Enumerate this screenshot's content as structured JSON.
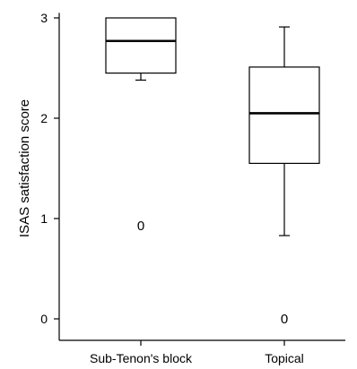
{
  "chart_data": {
    "type": "box",
    "ylabel": "ISAS satisfaction score",
    "xlabel": "",
    "ylim": [
      -0.2,
      3.05
    ],
    "yticks": [
      0,
      1,
      2,
      3
    ],
    "ytick_labels": [
      "0",
      "1",
      "2",
      "3"
    ],
    "grid": false,
    "outlier_symbol": "0",
    "groups": [
      {
        "label": "Sub-Tenon's block",
        "whisker_low": 2.38,
        "q1": 2.45,
        "median": 2.77,
        "q3": 3.0,
        "whisker_high": 3.0,
        "outliers": [
          0.93
        ]
      },
      {
        "label": "Topical",
        "whisker_low": 0.83,
        "q1": 1.55,
        "median": 2.05,
        "q3": 2.51,
        "whisker_high": 2.91,
        "outliers": [
          0.0
        ]
      }
    ]
  }
}
